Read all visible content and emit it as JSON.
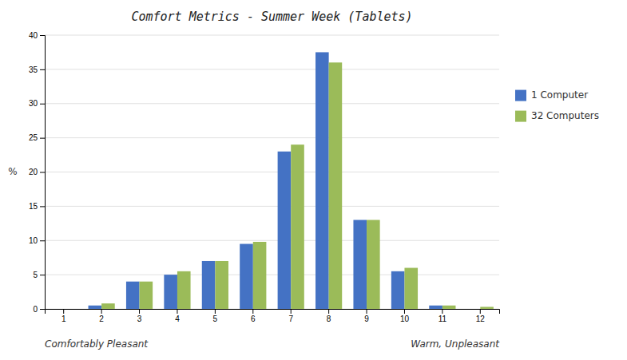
{
  "chart_data": {
    "type": "bar",
    "title": "Comfort Metrics - Summer Week (Tablets)",
    "categories": [
      1,
      2,
      3,
      4,
      5,
      6,
      7,
      8,
      9,
      10,
      11,
      12
    ],
    "series": [
      {
        "name": "1 Computer",
        "color": "#4472C4",
        "values": [
          0,
          0.5,
          4,
          5,
          7,
          9.5,
          23,
          37.5,
          13,
          5.5,
          0.5,
          0
        ]
      },
      {
        "name": "32 Computers",
        "color": "#9BBB59",
        "values": [
          0,
          0.8,
          4,
          5.5,
          7,
          9.8,
          24,
          36,
          13,
          6,
          0.5,
          0.3
        ]
      }
    ],
    "ylabel": "%",
    "annotations": [
      "Comfortably Pleasant",
      "Warm, Unpleasant"
    ],
    "ylim": [
      0,
      40
    ],
    "yticks": [
      0,
      5,
      10,
      15,
      20,
      25,
      30,
      35,
      40
    ],
    "grid": true,
    "legend": "right"
  }
}
